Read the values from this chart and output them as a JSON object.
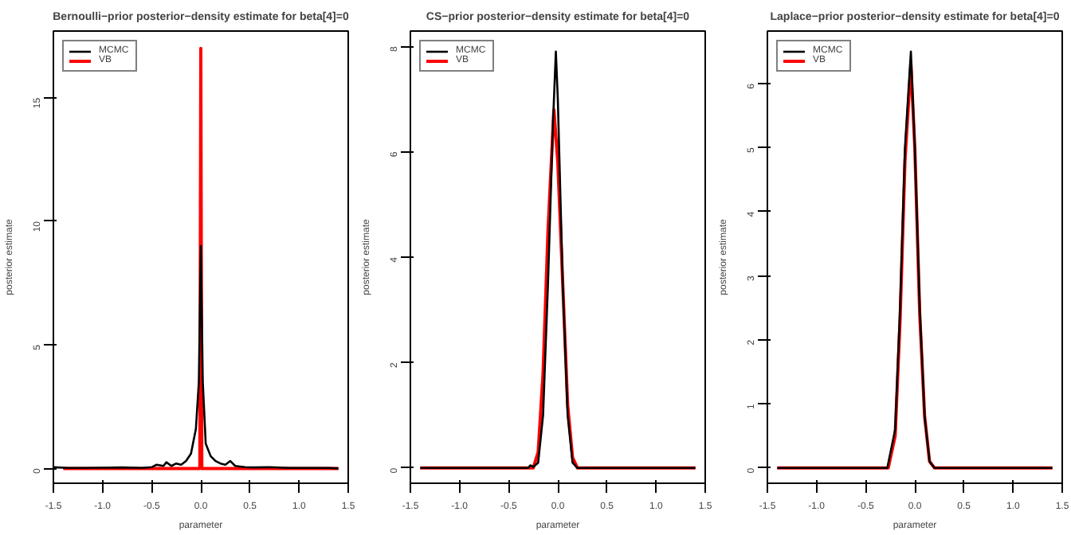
{
  "chart_data": [
    {
      "type": "line",
      "title": "Bernoulli−prior posterior−density estimate for beta[4]=0",
      "xlabel": "parameter",
      "ylabel": "posterior estimate",
      "xlim": [
        -1.5,
        1.5
      ],
      "xticks": [
        -1.5,
        {
          "value": -1,
          "label": "-1.0"
        },
        -0.5,
        {
          "value": 0,
          "label": "0.0"
        },
        0.5,
        {
          "value": 1,
          "label": "1.0"
        },
        1.5
      ],
      "ylim": [
        -0.6,
        17.7
      ],
      "yticks": [
        0,
        5,
        10,
        15
      ],
      "legend": "top left",
      "grid": false,
      "series": [
        {
          "name": "MCMC",
          "color": "#000000",
          "x": [
            -1.5,
            -1.35,
            -1.2,
            -1.0,
            -0.8,
            -0.6,
            -0.5,
            -0.45,
            -0.38,
            -0.35,
            -0.3,
            -0.25,
            -0.2,
            -0.15,
            -0.1,
            -0.05,
            -0.02,
            0.0,
            0.02,
            0.05,
            0.1,
            0.15,
            0.2,
            0.25,
            0.3,
            0.35,
            0.45,
            0.55,
            0.7,
            0.9,
            1.3,
            1.4
          ],
          "values": [
            0.05,
            0.02,
            0.02,
            0.03,
            0.04,
            0.02,
            0.05,
            0.15,
            0.1,
            0.25,
            0.1,
            0.2,
            0.15,
            0.3,
            0.6,
            1.6,
            3.5,
            9.0,
            3.5,
            1.0,
            0.5,
            0.3,
            0.2,
            0.15,
            0.3,
            0.1,
            0.05,
            0.04,
            0.05,
            0.02,
            0.02,
            0.0
          ]
        },
        {
          "name": "VB",
          "color": "#ff0000",
          "x": [
            -1.4,
            -0.01,
            0.0,
            0.01,
            1.4
          ],
          "values": [
            0.0,
            0.0,
            17.0,
            0.0,
            0.0
          ]
        }
      ]
    },
    {
      "type": "line",
      "title": "CS−prior posterior−density estimate for beta[4]=0",
      "xlabel": "parameter",
      "ylabel": "posterior estimate",
      "xlim": [
        -1.5,
        1.5
      ],
      "xticks": [
        -1.5,
        {
          "value": -1,
          "label": "-1.0"
        },
        -0.5,
        {
          "value": 0,
          "label": "0.0"
        },
        0.5,
        {
          "value": 1,
          "label": "1.0"
        },
        1.5
      ],
      "ylim": [
        -0.29,
        8.29
      ],
      "yticks": [
        0,
        2,
        4,
        6,
        8
      ],
      "legend": "top left",
      "grid": false,
      "series": [
        {
          "name": "MCMC",
          "color": "#000000",
          "x": [
            -1.4,
            -0.3,
            -0.28,
            -0.25,
            -0.2,
            -0.15,
            -0.1,
            -0.05,
            -0.02,
            0.0,
            0.05,
            0.1,
            0.15,
            0.2,
            1.4
          ],
          "values": [
            0.0,
            0.0,
            0.05,
            0.02,
            0.1,
            1.0,
            3.5,
            6.5,
            7.9,
            7.0,
            3.5,
            1.0,
            0.1,
            0.0,
            0.0
          ]
        },
        {
          "name": "VB",
          "color": "#ff0000",
          "x": [
            -1.4,
            -0.25,
            -0.2,
            -0.15,
            -0.1,
            -0.04,
            0.0,
            0.05,
            0.1,
            0.15,
            0.2,
            1.4
          ],
          "values": [
            0.0,
            0.0,
            0.3,
            1.8,
            4.5,
            6.8,
            5.8,
            3.5,
            1.2,
            0.2,
            0.0,
            0.0
          ]
        }
      ]
    },
    {
      "type": "line",
      "title": "Laplace−prior posterior−density estimate for beta[4]=0",
      "xlabel": "parameter",
      "ylabel": "posterior estimate",
      "xlim": [
        -1.5,
        1.5
      ],
      "xticks": [
        -1.5,
        {
          "value": -1,
          "label": "-1.0"
        },
        -0.5,
        {
          "value": 0,
          "label": "0.0"
        },
        0.5,
        {
          "value": 1,
          "label": "1.0"
        },
        1.5
      ],
      "ylim": [
        -0.24,
        6.82
      ],
      "yticks": [
        0,
        1,
        2,
        3,
        4,
        5,
        6
      ],
      "legend": "top left",
      "grid": false,
      "series": [
        {
          "name": "MCMC",
          "color": "#000000",
          "x": [
            -1.4,
            -0.28,
            -0.2,
            -0.15,
            -0.1,
            -0.04,
            0.0,
            0.05,
            0.1,
            0.15,
            0.2,
            1.4
          ],
          "values": [
            0.0,
            0.0,
            0.6,
            2.5,
            5.0,
            6.5,
            5.0,
            2.5,
            0.8,
            0.1,
            0.0,
            0.0
          ]
        },
        {
          "name": "VB",
          "color": "#ff0000",
          "x": [
            -1.4,
            -0.27,
            -0.2,
            -0.15,
            -0.1,
            -0.04,
            0.0,
            0.05,
            0.1,
            0.15,
            0.2,
            1.4
          ],
          "values": [
            0.0,
            0.0,
            0.5,
            2.3,
            4.8,
            6.3,
            5.0,
            2.4,
            0.8,
            0.1,
            0.0,
            0.0
          ]
        }
      ]
    }
  ]
}
